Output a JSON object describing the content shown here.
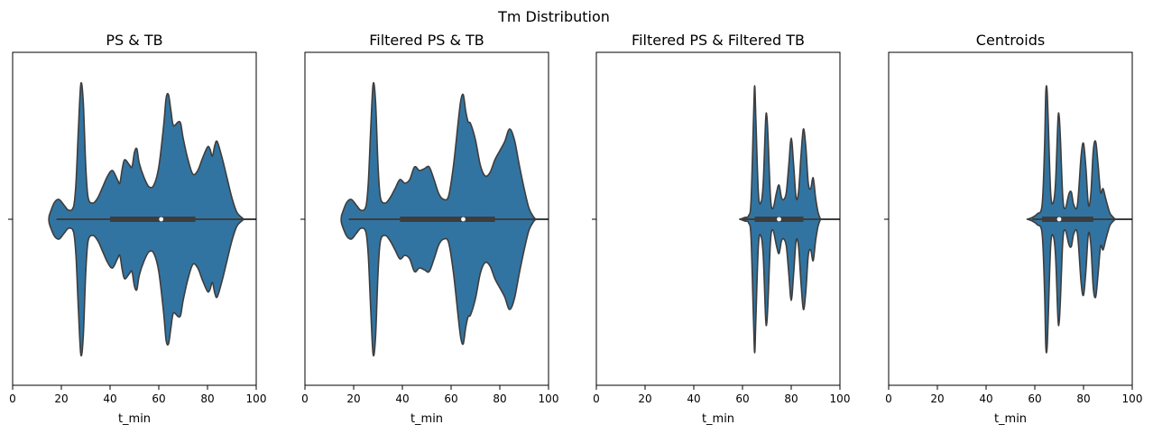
{
  "figure": {
    "suptitle": "Tm Distribution"
  },
  "style": {
    "violin_fill": "#3274a1",
    "violin_edge": "#3d3d3d",
    "box_color": "#3d3d3d",
    "median_color": "#ffffff"
  },
  "chart_data": [
    {
      "type": "violin",
      "title": "PS & TB",
      "xlabel": "t_min",
      "xlim": [
        0,
        100
      ],
      "xticks": [
        "0",
        "20",
        "40",
        "60",
        "80",
        "100"
      ],
      "density": [
        [
          15,
          0.02
        ],
        [
          17,
          0.09
        ],
        [
          19,
          0.11
        ],
        [
          21,
          0.08
        ],
        [
          23,
          0.05
        ],
        [
          25,
          0.07
        ],
        [
          26,
          0.2
        ],
        [
          27,
          0.5
        ],
        [
          28,
          0.75
        ],
        [
          29,
          0.65
        ],
        [
          30,
          0.3
        ],
        [
          31,
          0.12
        ],
        [
          33,
          0.09
        ],
        [
          35,
          0.12
        ],
        [
          37,
          0.18
        ],
        [
          39,
          0.24
        ],
        [
          41,
          0.27
        ],
        [
          43,
          0.22
        ],
        [
          44,
          0.2
        ],
        [
          45,
          0.28
        ],
        [
          46,
          0.33
        ],
        [
          48,
          0.3
        ],
        [
          49,
          0.29
        ],
        [
          50,
          0.37
        ],
        [
          51,
          0.39
        ],
        [
          52,
          0.31
        ],
        [
          54,
          0.23
        ],
        [
          56,
          0.18
        ],
        [
          58,
          0.19
        ],
        [
          60,
          0.29
        ],
        [
          62,
          0.52
        ],
        [
          63,
          0.67
        ],
        [
          64,
          0.69
        ],
        [
          65,
          0.6
        ],
        [
          66,
          0.52
        ],
        [
          68,
          0.54
        ],
        [
          69,
          0.53
        ],
        [
          70,
          0.45
        ],
        [
          72,
          0.33
        ],
        [
          74,
          0.25
        ],
        [
          76,
          0.27
        ],
        [
          78,
          0.34
        ],
        [
          80,
          0.4
        ],
        [
          81,
          0.39
        ],
        [
          82,
          0.35
        ],
        [
          83,
          0.41
        ],
        [
          84,
          0.43
        ],
        [
          86,
          0.34
        ],
        [
          88,
          0.23
        ],
        [
          90,
          0.12
        ],
        [
          92,
          0.04
        ],
        [
          94,
          0.01
        ],
        [
          95,
          0.0
        ]
      ],
      "whisker": [
        18,
        100
      ],
      "quartiles": [
        40,
        75
      ],
      "median": 61
    },
    {
      "type": "violin",
      "title": "Filtered PS & TB",
      "xlabel": "t_min",
      "xlim": [
        0,
        100
      ],
      "xticks": [
        "0",
        "20",
        "40",
        "60",
        "80",
        "100"
      ],
      "density": [
        [
          15,
          0.02
        ],
        [
          17,
          0.09
        ],
        [
          19,
          0.11
        ],
        [
          21,
          0.08
        ],
        [
          23,
          0.05
        ],
        [
          25,
          0.07
        ],
        [
          26,
          0.2
        ],
        [
          27,
          0.5
        ],
        [
          28,
          0.75
        ],
        [
          29,
          0.65
        ],
        [
          30,
          0.3
        ],
        [
          31,
          0.12
        ],
        [
          33,
          0.09
        ],
        [
          35,
          0.12
        ],
        [
          37,
          0.17
        ],
        [
          39,
          0.22
        ],
        [
          41,
          0.2
        ],
        [
          43,
          0.22
        ],
        [
          45,
          0.29
        ],
        [
          47,
          0.27
        ],
        [
          49,
          0.28
        ],
        [
          51,
          0.29
        ],
        [
          53,
          0.22
        ],
        [
          55,
          0.14
        ],
        [
          57,
          0.11
        ],
        [
          59,
          0.13
        ],
        [
          61,
          0.3
        ],
        [
          63,
          0.55
        ],
        [
          64,
          0.66
        ],
        [
          65,
          0.69
        ],
        [
          66,
          0.6
        ],
        [
          67,
          0.54
        ],
        [
          68,
          0.53
        ],
        [
          70,
          0.44
        ],
        [
          72,
          0.3
        ],
        [
          74,
          0.24
        ],
        [
          76,
          0.26
        ],
        [
          78,
          0.33
        ],
        [
          80,
          0.38
        ],
        [
          82,
          0.43
        ],
        [
          84,
          0.5
        ],
        [
          86,
          0.44
        ],
        [
          88,
          0.3
        ],
        [
          90,
          0.17
        ],
        [
          92,
          0.06
        ],
        [
          94,
          0.01
        ],
        [
          95,
          0.0
        ]
      ],
      "whisker": [
        18,
        100
      ],
      "quartiles": [
        39,
        78
      ],
      "median": 65
    },
    {
      "type": "violin",
      "title": "Filtered PS & Filtered TB",
      "xlabel": "t_min",
      "xlim": [
        0,
        100
      ],
      "xticks": [
        "0",
        "20",
        "40",
        "60",
        "80",
        "100"
      ],
      "density": [
        [
          59,
          0.0
        ],
        [
          61,
          0.01
        ],
        [
          62.5,
          0.02
        ],
        [
          63.5,
          0.1
        ],
        [
          64.5,
          0.55
        ],
        [
          65,
          0.74
        ],
        [
          65.5,
          0.55
        ],
        [
          66.5,
          0.15
        ],
        [
          67.5,
          0.09
        ],
        [
          68.5,
          0.2
        ],
        [
          69.5,
          0.55
        ],
        [
          70,
          0.57
        ],
        [
          70.5,
          0.45
        ],
        [
          71.5,
          0.12
        ],
        [
          72.5,
          0.06
        ],
        [
          74,
          0.15
        ],
        [
          75,
          0.19
        ],
        [
          76,
          0.12
        ],
        [
          77,
          0.11
        ],
        [
          78,
          0.15
        ],
        [
          79,
          0.3
        ],
        [
          80,
          0.45
        ],
        [
          81,
          0.3
        ],
        [
          82,
          0.12
        ],
        [
          83,
          0.15
        ],
        [
          84,
          0.35
        ],
        [
          85,
          0.5
        ],
        [
          86,
          0.4
        ],
        [
          87,
          0.2
        ],
        [
          88,
          0.17
        ],
        [
          89,
          0.23
        ],
        [
          90,
          0.12
        ],
        [
          91,
          0.04
        ],
        [
          92,
          0.0
        ]
      ],
      "whisker": [
        59,
        100
      ],
      "quartiles": [
        65,
        85
      ],
      "median": 75
    },
    {
      "type": "violin",
      "title": "Centroids",
      "xlabel": "t_min",
      "xlim": [
        0,
        100
      ],
      "xticks": [
        "0",
        "20",
        "40",
        "60",
        "80",
        "100"
      ],
      "density": [
        [
          57,
          0.0
        ],
        [
          59,
          0.01
        ],
        [
          61,
          0.03
        ],
        [
          63,
          0.08
        ],
        [
          64,
          0.4
        ],
        [
          64.5,
          0.7
        ],
        [
          65,
          0.72
        ],
        [
          65.5,
          0.55
        ],
        [
          66.5,
          0.15
        ],
        [
          67.5,
          0.09
        ],
        [
          68.5,
          0.2
        ],
        [
          69.5,
          0.55
        ],
        [
          70,
          0.57
        ],
        [
          70.5,
          0.45
        ],
        [
          71.5,
          0.12
        ],
        [
          72.5,
          0.06
        ],
        [
          74,
          0.14
        ],
        [
          75,
          0.15
        ],
        [
          76,
          0.08
        ],
        [
          77.5,
          0.08
        ],
        [
          79,
          0.35
        ],
        [
          80,
          0.42
        ],
        [
          81,
          0.28
        ],
        [
          82,
          0.08
        ],
        [
          83,
          0.14
        ],
        [
          84,
          0.38
        ],
        [
          85,
          0.43
        ],
        [
          86,
          0.3
        ],
        [
          87,
          0.15
        ],
        [
          88,
          0.17
        ],
        [
          89,
          0.12
        ],
        [
          90,
          0.07
        ],
        [
          91,
          0.03
        ],
        [
          93,
          0.0
        ]
      ],
      "whisker": [
        59,
        100
      ],
      "quartiles": [
        63,
        84
      ],
      "median": 70
    }
  ]
}
